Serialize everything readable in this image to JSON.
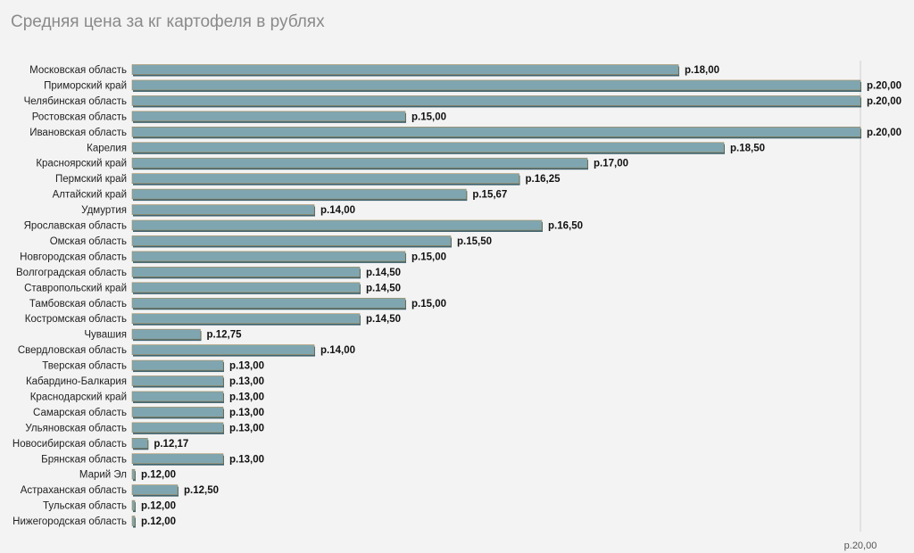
{
  "chart_data": {
    "type": "bar",
    "orientation": "horizontal",
    "title": "Средняя цена за кг картофеля в рублях",
    "value_prefix": "р.",
    "categories": [
      "Московская область",
      "Приморский край",
      "Челябинская область",
      "Ростовская область",
      "Ивановская область",
      "Карелия",
      "Красноярский край",
      "Пермский край",
      "Алтайский край",
      "Удмуртия",
      "Ярославская область",
      "Омская область",
      "Новгородская область",
      "Волгоградская область",
      "Ставропольский край",
      "Тамбовская область",
      "Костромская область",
      "Чувашия",
      "Свердловская область",
      "Тверская область",
      "Кабардино-Балкария",
      "Краснодарский край",
      "Самарская область",
      "Ульяновская область",
      "Новосибирская область",
      "Брянская область",
      "Марий Эл",
      "Астраханская область",
      "Тульская область",
      "Нижегородская область"
    ],
    "values": [
      18.0,
      20.0,
      20.0,
      15.0,
      20.0,
      18.5,
      17.0,
      16.25,
      15.67,
      14.0,
      16.5,
      15.5,
      15.0,
      14.5,
      14.5,
      15.0,
      14.5,
      12.75,
      14.0,
      13.0,
      13.0,
      13.0,
      13.0,
      13.0,
      12.17,
      13.0,
      12.0,
      12.5,
      12.0,
      12.0
    ],
    "value_labels": [
      "р.18,00",
      "р.20,00",
      "р.20,00",
      "р.15,00",
      "р.20,00",
      "р.18,50",
      "р.17,00",
      "р.16,25",
      "р.15,67",
      "р.14,00",
      "р.16,50",
      "р.15,50",
      "р.15,00",
      "р.14,50",
      "р.14,50",
      "р.15,00",
      "р.14,50",
      "р.12,75",
      "р.14,00",
      "р.13,00",
      "р.13,00",
      "р.13,00",
      "р.13,00",
      "р.13,00",
      "р.12,17",
      "р.13,00",
      "р.12,00",
      "р.12,50",
      "р.12,00",
      "р.12,00"
    ],
    "xlim": [
      12.0,
      20.0
    ],
    "x_tick_labels": [
      "р.20,00"
    ],
    "grid": false,
    "legend": "none",
    "colors": {
      "bar": "#7fa6b0",
      "bar_shadow": "#3f6470",
      "bar_edge": "#a68a5a",
      "title": "#8a8a8a",
      "axis_line": "#cfcfcf",
      "background": "#f3f3f3"
    }
  }
}
